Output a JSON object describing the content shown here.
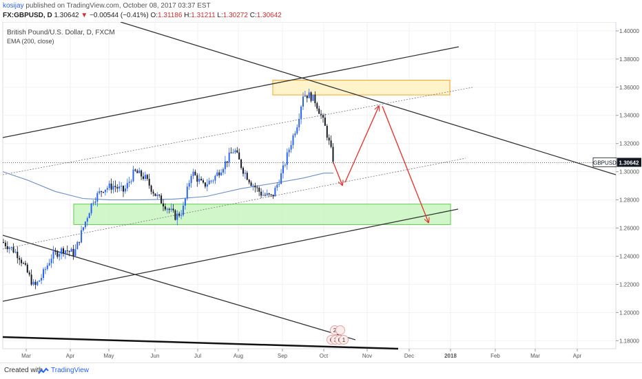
{
  "header": {
    "author": "kosijay",
    "published": "published on TradingView.com, October 08, 2017 03:37 EST",
    "symbol": "FX:GBPUSD, D",
    "last": "1.30642",
    "change_arrow": "▼",
    "change": "−0.00544 (−0.41%)",
    "o_label": "O:",
    "o_value": "1.31186",
    "h_label": "H:",
    "h_value": "1.31211",
    "l_label": "L:",
    "l_value": "1.30272",
    "c_label": "C:",
    "c_value": "1.30642"
  },
  "chart_data": {
    "type": "candlestick",
    "title": "British Pound/U.S. Dollar, D, FXCM",
    "indicator": "EMA (200, close)",
    "y_ticks": [
      "1.40000",
      "1.38000",
      "1.36000",
      "1.34000",
      "1.32000",
      "1.30000",
      "1.28000",
      "1.26000",
      "1.24000",
      "1.22000",
      "1.20000",
      "1.18000"
    ],
    "ylim": [
      1.1743,
      1.4063
    ],
    "x_ticks": [
      "Mar",
      "Apr",
      "May",
      "Jun",
      "Jul",
      "Aug",
      "Sep",
      "Oct",
      "Nov",
      "Dec",
      "2018",
      "Feb",
      "Mar",
      "Apr"
    ],
    "price_label": "GBPUSD",
    "price_value": "1.30642",
    "last_price": 1.30642,
    "event_labels": [
      "2",
      "6",
      "3",
      "0",
      "1"
    ],
    "colors": {
      "up": "#2962ff",
      "down": "#131722",
      "ema": "#6b8fc7",
      "resistance_zone": "#fff3cc",
      "resistance_border": "#f5a623",
      "support_zone": "#c8f5c0",
      "support_border": "#5ccc4a",
      "projection": "#e53935"
    }
  },
  "footer": {
    "created_with": "Created with",
    "brand": "TradingView"
  }
}
